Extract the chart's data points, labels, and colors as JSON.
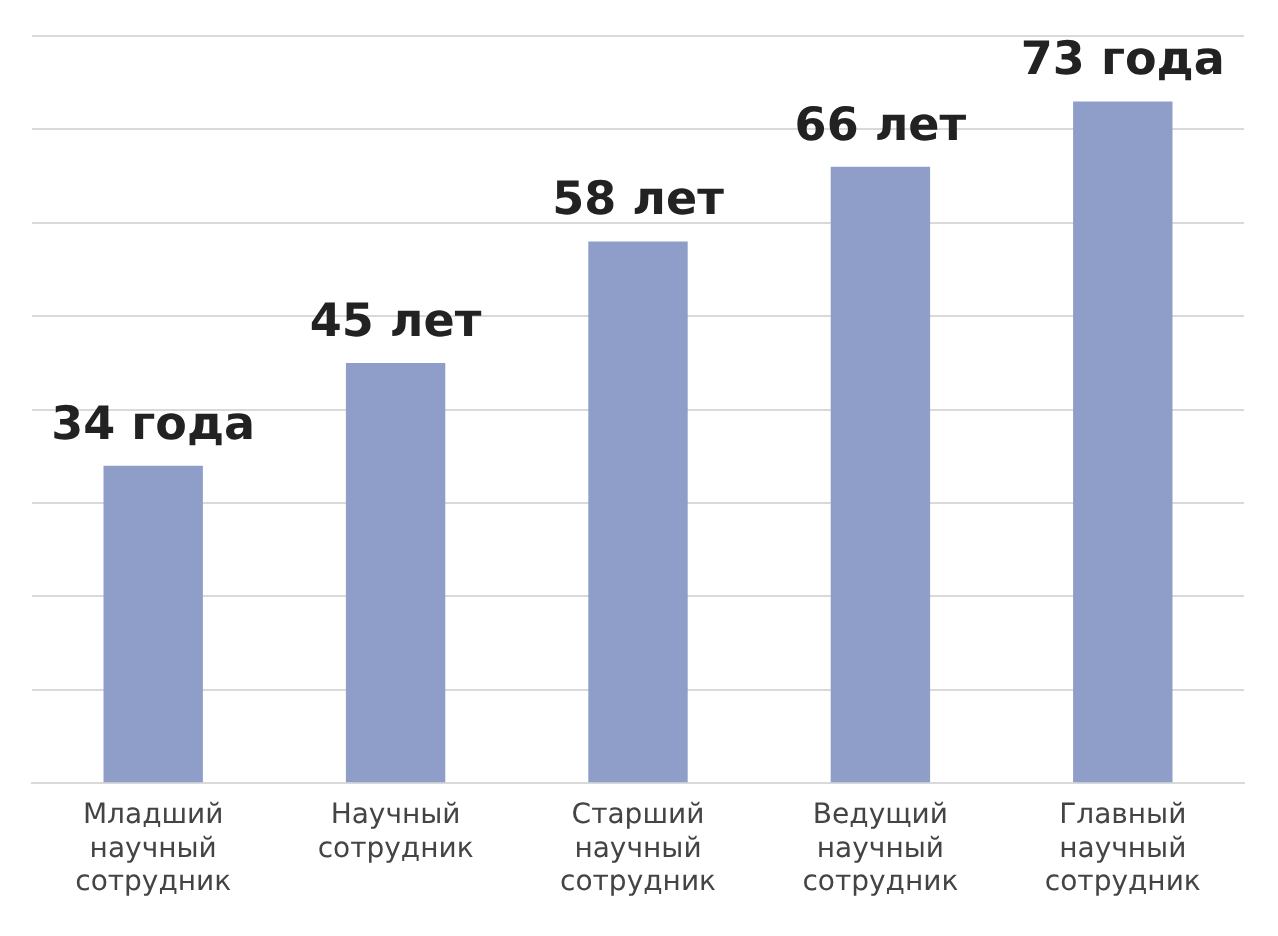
{
  "chart_data": {
    "type": "bar",
    "categories": [
      "Младший научный сотрудник",
      "Научный сотрудник",
      "Старший научный сотрудник",
      "Ведущий научный сотрудник",
      "Главный научный сотрудник"
    ],
    "values": [
      34,
      45,
      58,
      66,
      73
    ],
    "value_labels": [
      "34 года",
      "45 лет",
      "58 лет",
      "66 лет",
      "73 года"
    ],
    "color": "#8f9ec9",
    "ylim": [
      0,
      80
    ],
    "yticks": [
      {
        "value": 0,
        "label": null
      },
      {
        "value": 10,
        "label": null
      },
      {
        "value": 20,
        "label": null
      },
      {
        "value": 30,
        "label": null
      },
      {
        "value": 40,
        "label": null
      },
      {
        "value": 50,
        "label": null
      },
      {
        "value": 60,
        "label": null
      },
      {
        "value": 70,
        "label": null
      },
      {
        "value": 80,
        "label": null
      }
    ],
    "grid": "y",
    "tick_labels": "x"
  }
}
